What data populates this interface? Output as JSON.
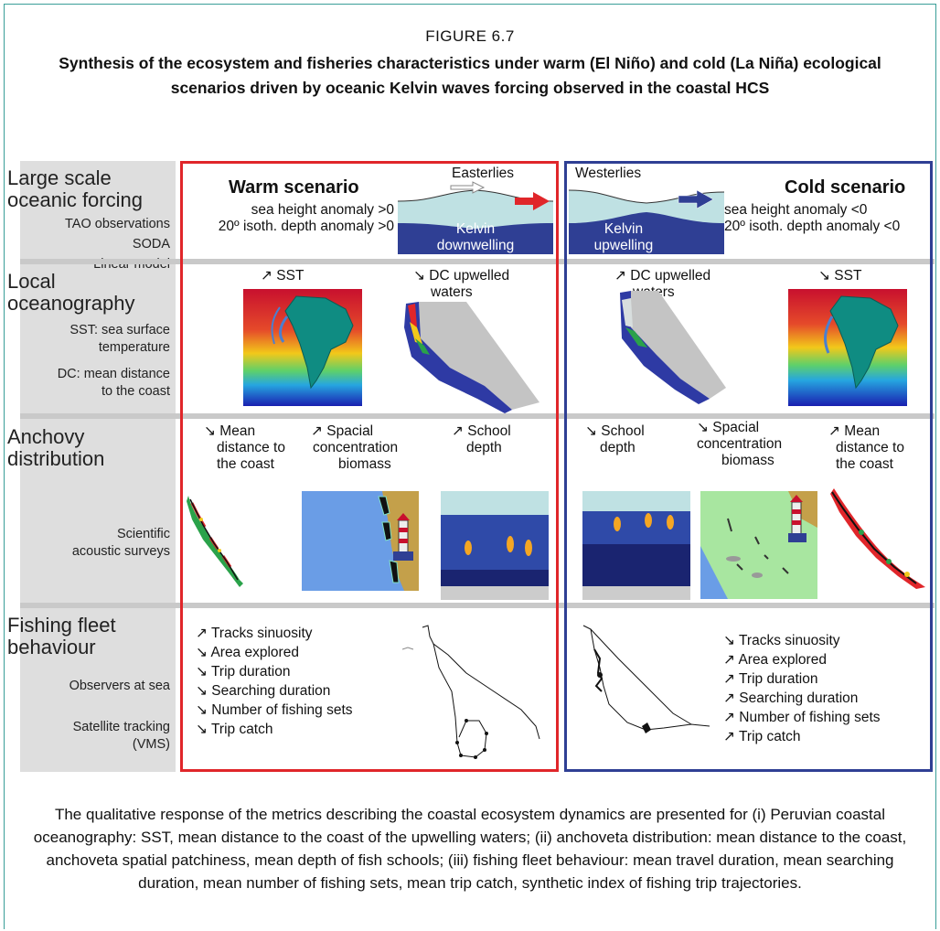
{
  "figure": {
    "label": "FIGURE 6.7",
    "title": "Synthesis of the ecosystem and fisheries characteristics under warm (El Niño) and cold (La Niña) ecological scenarios driven by oceanic Kelvin waves forcing observed in the coastal HCS"
  },
  "rows": {
    "forcing": {
      "head1": "Large scale",
      "head2": "oceanic forcing",
      "sub": [
        "TAO observations",
        "SODA",
        "Linear model"
      ]
    },
    "ocean": {
      "head1": "Local",
      "head2": "oceanography",
      "sub": [
        "SST: sea surface",
        "temperature",
        "DC: mean distance",
        "to the coast"
      ]
    },
    "anchovy": {
      "head1": "Anchovy",
      "head2": "distribution",
      "sub": [
        "Scientific",
        "acoustic surveys"
      ]
    },
    "fleet": {
      "head1": "Fishing fleet",
      "head2": "behaviour",
      "sub": [
        "Observers at sea",
        "Satellite tracking",
        "(VMS)"
      ]
    }
  },
  "warm": {
    "scenario": "Warm scenario",
    "wind": "Easterlies",
    "anomaly1": "sea height anomaly >0",
    "anomaly2": "20º isoth. depth anomaly >0",
    "kelvin1": "Kelvin",
    "kelvin2": "downwelling",
    "sst": "↗ SST",
    "dc1": "↘ DC upwelled",
    "dc2": "waters",
    "mean1": "↘ Mean",
    "mean2": "distance to",
    "mean3": "the coast",
    "spac1": "↗ Spacial",
    "spac2": "concentration",
    "spac3": "biomass",
    "school1": "↗ School",
    "school2": "depth",
    "fleet": [
      "↗ Tracks sinuosity",
      "↘ Area explored",
      "↘ Trip duration",
      "↘ Searching duration",
      "↘ Number of fishing sets",
      "↘ Trip catch"
    ]
  },
  "cold": {
    "scenario": "Cold scenario",
    "wind": "Westerlies",
    "anomaly1": "sea height anomaly <0",
    "anomaly2": "20º isoth. depth anomaly <0",
    "kelvin1": "Kelvin",
    "kelvin2": "upwelling",
    "sst": "↘ SST",
    "dc1": "↗ DC upwelled",
    "dc2": "waters",
    "school1": "↘ School",
    "school2": "depth",
    "spac1": "↘ Spacial",
    "spac2": "concentration",
    "spac3": "biomass",
    "mean1": "↗ Mean",
    "mean2": "distance to",
    "mean3": "the coast",
    "fleet": [
      "↘ Tracks sinuosity",
      "↗ Area explored",
      "↗ Trip duration",
      "↗ Searching duration",
      "↗ Number of fishing sets",
      "↗ Trip catch"
    ]
  },
  "caption": "The qualitative response of the metrics describing the coastal ecosystem dynamics are presented for (i) Peruvian coastal oceanography: SST, mean distance to the coast of the upwelling waters; (ii) anchoveta distribution: mean distance to the coast, anchoveta spatial patchiness, mean depth of fish schools; (iii) fishing fleet behaviour: mean travel duration, mean searching duration, mean number of fishing sets, mean trip catch, synthetic index of fishing trip trajectories.",
  "colors": {
    "warm_border": "#e0262a",
    "cold_border": "#2f3f94",
    "frame": "#3a9e98",
    "label_bg": "#dedede"
  }
}
